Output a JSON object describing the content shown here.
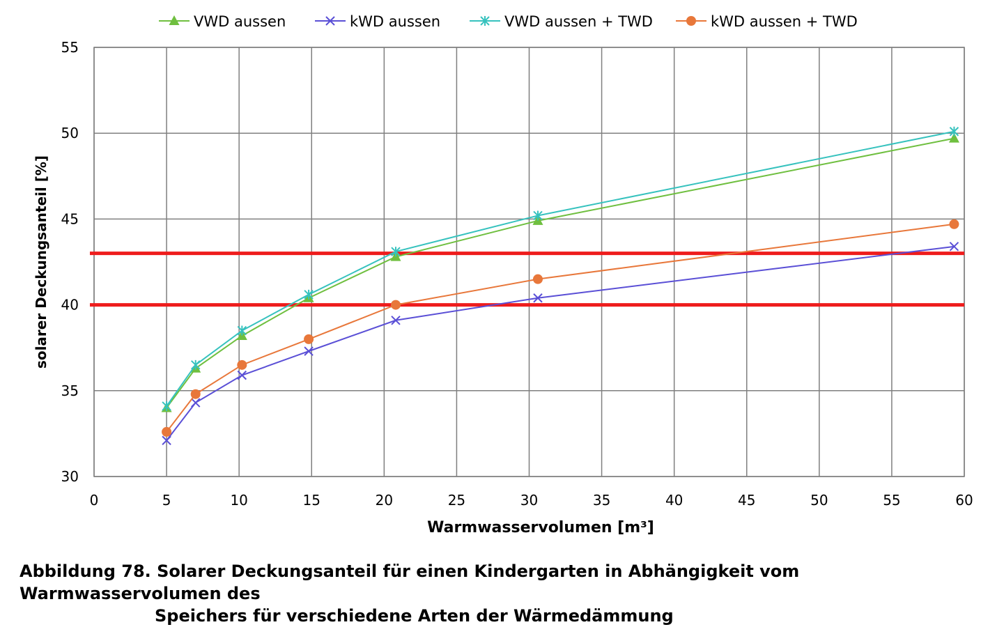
{
  "chart_data": {
    "type": "line",
    "xlabel": "Warmwasservolumen [m³]",
    "ylabel": "solarer Deckungsanteil [%]",
    "xlim": [
      0,
      60
    ],
    "ylim": [
      30,
      55
    ],
    "xticks": [
      "0",
      "5",
      "10",
      "15",
      "20",
      "25",
      "30",
      "35",
      "40",
      "45",
      "50",
      "55",
      "60"
    ],
    "yticks": [
      "30",
      "35",
      "40",
      "45",
      "50",
      "55"
    ],
    "grid": true,
    "legend_position": "top",
    "series": [
      {
        "name": "VWD aussen",
        "color": "#6fbf3f",
        "marker": "triangle",
        "x": [
          5,
          7,
          10.2,
          14.8,
          20.8,
          30.6,
          59.3
        ],
        "y": [
          34.0,
          36.3,
          38.2,
          40.4,
          42.8,
          44.9,
          49.7
        ]
      },
      {
        "name": "kWD aussen",
        "color": "#5a4fd6",
        "marker": "x",
        "x": [
          5,
          7,
          10.2,
          14.8,
          20.8,
          30.6,
          59.3
        ],
        "y": [
          32.1,
          34.3,
          35.9,
          37.3,
          39.1,
          40.4,
          43.4
        ]
      },
      {
        "name": "VWD aussen + TWD",
        "color": "#36c2be",
        "marker": "star",
        "x": [
          5,
          7,
          10.2,
          14.8,
          20.8,
          30.6,
          59.3
        ],
        "y": [
          34.1,
          36.5,
          38.5,
          40.6,
          43.1,
          45.2,
          50.1
        ]
      },
      {
        "name": "kWD aussen + TWD",
        "color": "#e8773a",
        "marker": "circle",
        "x": [
          5,
          7,
          10.2,
          14.8,
          20.8,
          30.6,
          59.3
        ],
        "y": [
          32.6,
          34.8,
          36.5,
          38.0,
          40.0,
          41.5,
          44.7
        ]
      }
    ],
    "reference_lines": [
      {
        "y": 43,
        "color": "#ee1c1c"
      },
      {
        "y": 40,
        "color": "#ee1c1c"
      }
    ]
  },
  "caption": {
    "line1": "Abbildung 78.  Solarer Deckungsanteil für einen Kindergarten in Abhängigkeit vom Warmwasservolumen des",
    "line2": "Speichers für verschiedene Arten der Wärmedämmung"
  }
}
